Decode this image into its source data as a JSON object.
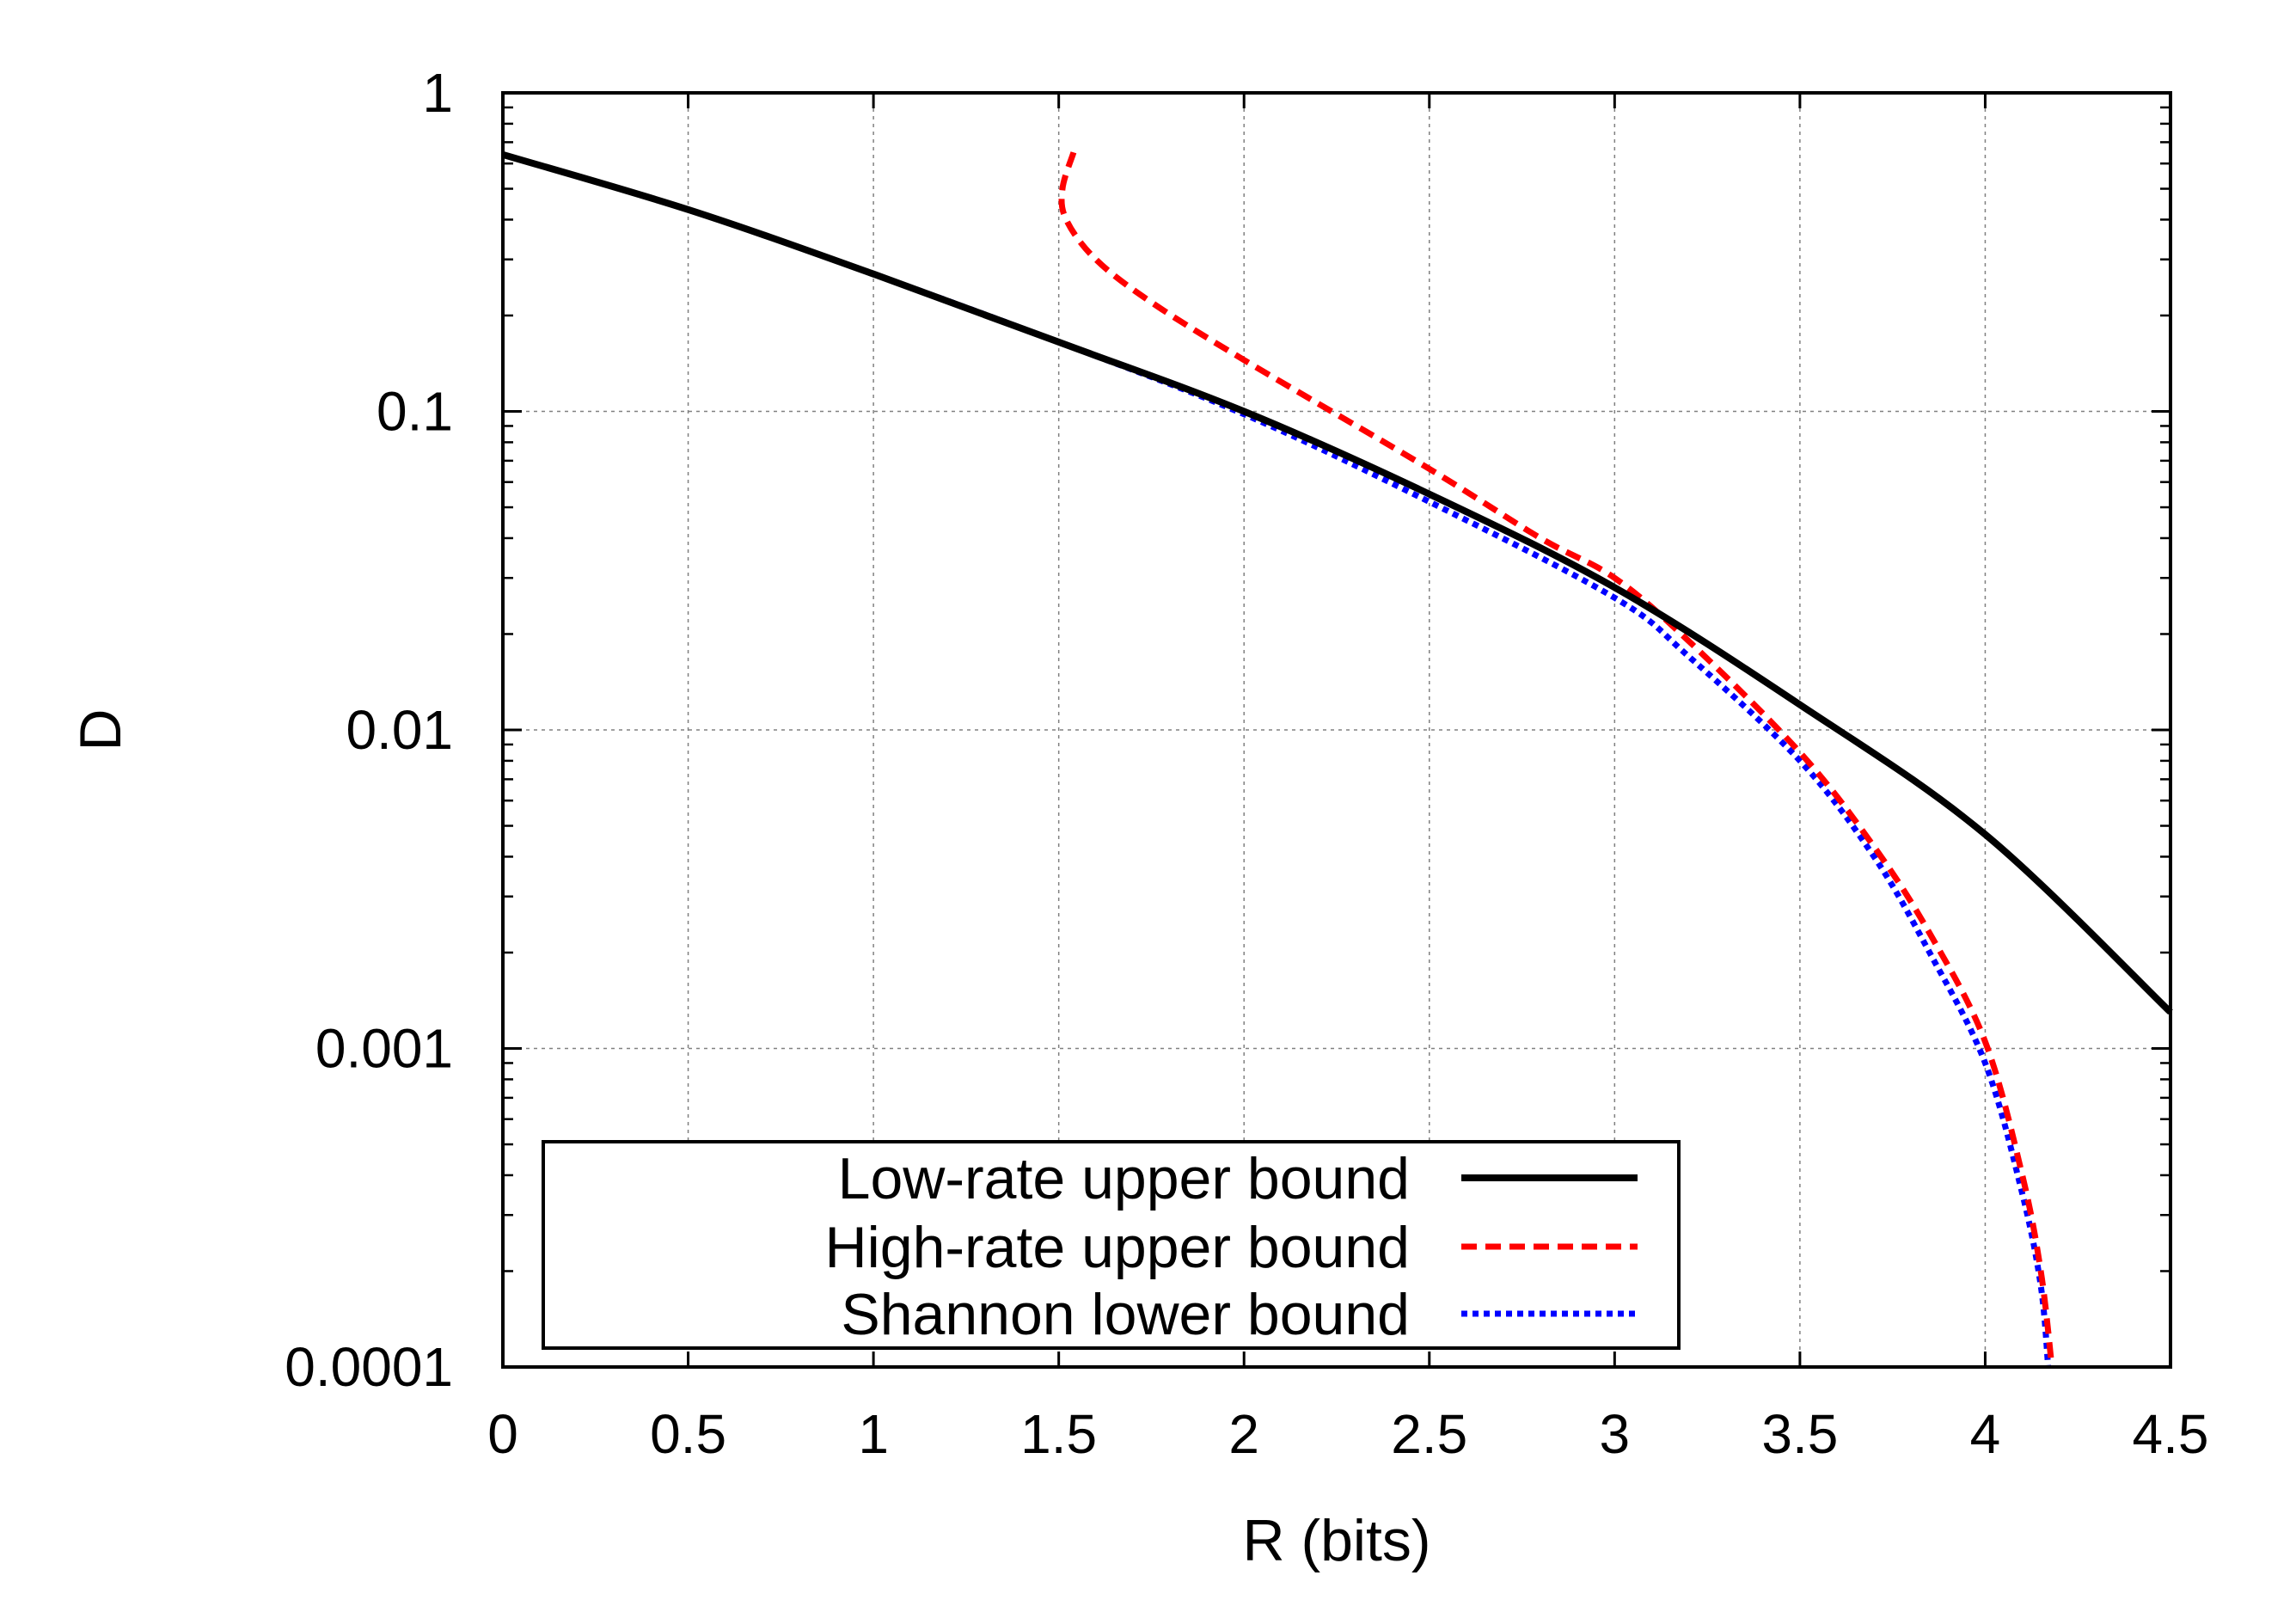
{
  "chart_data": {
    "type": "line",
    "title": "",
    "xlabel": "R (bits)",
    "ylabel": "D",
    "xlim": [
      0,
      4.5
    ],
    "ylim": [
      0.0001,
      1
    ],
    "yscale": "log",
    "grid": true,
    "legend_position": "bottom-left",
    "xticks": [
      0,
      0.5,
      1,
      1.5,
      2,
      2.5,
      3,
      3.5,
      4,
      4.5
    ],
    "xtick_labels": [
      "0",
      "0.5",
      "1",
      "1.5",
      "2",
      "2.5",
      "3",
      "3.5",
      "4",
      "4.5"
    ],
    "yticks": [
      0.0001,
      0.001,
      0.01,
      0.1,
      1
    ],
    "ytick_labels": [
      "0.0001",
      "0.001",
      "0.01",
      "0.1",
      "1"
    ],
    "series": [
      {
        "name": "Low-rate upper bound",
        "color": "#000000",
        "style": "solid",
        "points": [
          [
            0,
            0.64
          ],
          [
            0.5,
            0.43
          ],
          [
            1,
            0.27
          ],
          [
            1.5,
            0.165
          ],
          [
            2,
            0.1
          ],
          [
            2.5,
            0.055
          ],
          [
            3,
            0.028
          ],
          [
            3.5,
            0.012
          ],
          [
            4,
            0.0047
          ],
          [
            4.5,
            0.0013
          ]
        ]
      },
      {
        "name": "High-rate upper bound",
        "color": "#ff0000",
        "style": "dashed",
        "points": [
          [
            1.54,
            0.65
          ],
          [
            1.51,
            0.5
          ],
          [
            1.52,
            0.4
          ],
          [
            1.6,
            0.3
          ],
          [
            1.75,
            0.22
          ],
          [
            2,
            0.145
          ],
          [
            2.5,
            0.066
          ],
          [
            2.8,
            0.04
          ],
          [
            3,
            0.03
          ],
          [
            3.2,
            0.019
          ],
          [
            3.5,
            0.0085
          ],
          [
            3.7,
            0.0043
          ],
          [
            3.85,
            0.0023
          ],
          [
            4,
            0.00105
          ],
          [
            4.1,
            0.0004
          ],
          [
            4.15,
            0.0002
          ],
          [
            4.18,
            0.0001
          ]
        ]
      },
      {
        "name": "Shannon lower bound",
        "color": "#0000ff",
        "style": "dotted",
        "points": [
          [
            0,
            0.64
          ],
          [
            0.5,
            0.43
          ],
          [
            1,
            0.27
          ],
          [
            1.5,
            0.165
          ],
          [
            2,
            0.098
          ],
          [
            2.5,
            0.052
          ],
          [
            3,
            0.026
          ],
          [
            3.2,
            0.017
          ],
          [
            3.5,
            0.008
          ],
          [
            3.7,
            0.004
          ],
          [
            3.85,
            0.002
          ],
          [
            4,
            0.0009
          ],
          [
            4.1,
            0.00035
          ],
          [
            4.15,
            0.00018
          ],
          [
            4.17,
            0.0001
          ]
        ]
      }
    ]
  }
}
